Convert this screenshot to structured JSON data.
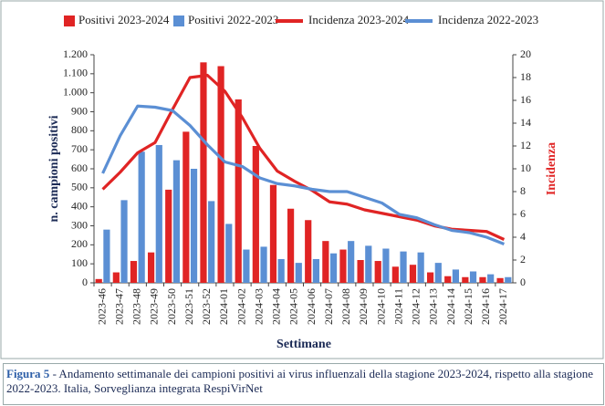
{
  "chart_data": {
    "type": "bar",
    "categories": [
      "2023-46",
      "2023-47",
      "2023-48",
      "2023-49",
      "2023-50",
      "2023-51",
      "2023-52",
      "2024-01",
      "2024-02",
      "2024-03",
      "2024-04",
      "2024-05",
      "2024-06",
      "2024-07",
      "2024-08",
      "2024-09",
      "2024-10",
      "2024-11",
      "2024-12",
      "2024-13",
      "2024-14",
      "2024-15",
      "2024-16",
      "2024-17"
    ],
    "series": [
      {
        "name": "Positivi 2023-2024",
        "color": "#e02424",
        "style": "bar",
        "values": [
          20,
          55,
          115,
          160,
          490,
          795,
          1160,
          1140,
          965,
          720,
          515,
          390,
          330,
          220,
          175,
          120,
          115,
          85,
          95,
          55,
          35,
          30,
          30,
          25
        ]
      },
      {
        "name": "Positivi 2022-2023",
        "color": "#5b8fd4",
        "style": "bar",
        "values": [
          280,
          435,
          690,
          725,
          645,
          600,
          430,
          310,
          175,
          190,
          125,
          105,
          125,
          155,
          220,
          195,
          180,
          165,
          160,
          105,
          70,
          60,
          45,
          30
        ]
      },
      {
        "name": "Incidenza 2023-2024",
        "color": "#e02424",
        "style": "line",
        "axis": "y2",
        "values": [
          8.2,
          9.7,
          11.4,
          12.3,
          15.2,
          18.0,
          18.2,
          16.8,
          14.5,
          11.8,
          9.8,
          8.9,
          8.1,
          7.1,
          6.9,
          6.4,
          6.1,
          5.8,
          5.5,
          5.0,
          4.7,
          4.6,
          4.5,
          3.8
        ]
      },
      {
        "name": "Incidenza 2022-2023",
        "color": "#5b8fd4",
        "style": "line",
        "axis": "y2",
        "values": [
          9.6,
          12.9,
          15.5,
          15.4,
          15.1,
          13.8,
          12.1,
          10.6,
          10.2,
          9.2,
          8.7,
          8.5,
          8.2,
          8.0,
          8.0,
          7.5,
          7.0,
          6.0,
          5.7,
          5.1,
          4.6,
          4.4,
          4.0,
          3.4
        ]
      }
    ],
    "ylim": [
      0,
      1200
    ],
    "yticks": [
      0,
      100,
      200,
      300,
      400,
      500,
      600,
      700,
      800,
      900,
      {
        "value": 1000,
        "label": "1.000"
      },
      {
        "value": 1100,
        "label": "1.100"
      },
      {
        "value": 1200,
        "label": "1.200"
      }
    ],
    "y2lim": [
      0,
      20
    ],
    "y2ticks": [
      0,
      2,
      4,
      6,
      8,
      10,
      12,
      14,
      16,
      18,
      20
    ],
    "ylabel": "n. campioni positivi",
    "y2label": "Incidenza",
    "xlabel": "Settimane",
    "legend": "top"
  },
  "caption": {
    "label": "Figura 5",
    "text": " - Andamento settimanale dei campioni positivi ai virus influenzali della stagione 2023-2024, rispetto alla stagione 2022-2023. Italia, Sorveglianza integrata RespiVirNet"
  }
}
